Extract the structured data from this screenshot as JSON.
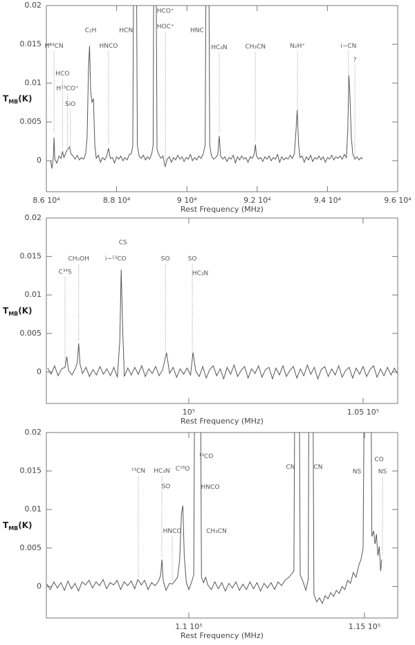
{
  "chart_data": [
    {
      "type": "line",
      "color": "#555555",
      "xlabel": "Rest Frequency (MHz)",
      "ylabel": {
        "main": "T",
        "sub": "MB",
        "unit": "(K)"
      },
      "xlim": [
        86000,
        96000
      ],
      "ylim": [
        -0.004,
        0.02
      ],
      "xticks": [
        {
          "value": 86000,
          "label": "8.6 10⁴"
        },
        {
          "value": 88000,
          "label": "8.8 10⁴"
        },
        {
          "value": 90000,
          "label": "9 10⁴"
        },
        {
          "value": 92000,
          "label": "9.2 10⁴"
        },
        {
          "value": 94000,
          "label": "9.4 10⁴"
        },
        {
          "value": 96000,
          "label": "9.6 10⁴"
        }
      ],
      "yticks": [
        0,
        0.005,
        0.01,
        0.015,
        0.02
      ],
      "x": [
        86120,
        86160,
        86200,
        86220,
        86240,
        86300,
        86360,
        86420,
        86460,
        86500,
        86560,
        86600,
        86660,
        86700,
        86760,
        86820,
        86880,
        86940,
        87000,
        87060,
        87120,
        87160,
        87200,
        87230,
        87260,
        87300,
        87340,
        87380,
        87420,
        87480,
        87540,
        87600,
        87660,
        87720,
        87770,
        87820,
        87880,
        87940,
        88000,
        88060,
        88120,
        88180,
        88240,
        88300,
        88360,
        88420,
        88460,
        88490,
        88560,
        88590,
        88640,
        88700,
        88760,
        88820,
        88880,
        88940,
        89000,
        89040,
        89060,
        89120,
        89150,
        89200,
        89260,
        89320,
        89380,
        89440,
        89500,
        89560,
        89620,
        89680,
        89740,
        89800,
        89860,
        89920,
        89980,
        90040,
        90100,
        90160,
        90220,
        90280,
        90340,
        90400,
        90460,
        90520,
        90550,
        90620,
        90650,
        90700,
        90760,
        90820,
        90880,
        90920,
        90960,
        91020,
        91080,
        91140,
        91200,
        91260,
        91320,
        91380,
        91440,
        91500,
        91560,
        91620,
        91680,
        91740,
        91800,
        91860,
        91920,
        91950,
        91980,
        92040,
        92100,
        92160,
        92220,
        92280,
        92340,
        92400,
        92460,
        92520,
        92580,
        92640,
        92700,
        92760,
        92820,
        92880,
        92940,
        93000,
        93060,
        93100,
        93140,
        93180,
        93220,
        93280,
        93340,
        93400,
        93460,
        93520,
        93580,
        93640,
        93700,
        93760,
        93820,
        93880,
        93940,
        94000,
        94060,
        94120,
        94180,
        94240,
        94300,
        94360,
        94420,
        94480,
        94540,
        94580,
        94610,
        94640,
        94680,
        94720,
        94780,
        94840,
        94900,
        94960,
        95000
      ],
      "values": [
        0,
        -0.001,
        0.0005,
        0.003,
        0.0002,
        -0.0003,
        0.0006,
        0.0003,
        0.0012,
        0.0004,
        0.0011,
        0.0014,
        0.0018,
        0.0009,
        0.0006,
        0.0002,
        0.0007,
        0.0001,
        0.0004,
        0.0002,
        0.0009,
        0.003,
        0.012,
        0.0148,
        0.009,
        0.0075,
        0.008,
        0.002,
        0.0003,
        0.0007,
        -0.0002,
        0.0004,
        0.0001,
        0.0006,
        0.0016,
        0.0003,
        0.0004,
        -0.0003,
        0.0005,
        0.0002,
        0.0006,
        0,
        0.0004,
        0.0001,
        0.0008,
        0.0009,
        0.002,
        0.03,
        0.03,
        0.002,
        0.0006,
        0.0003,
        0.0007,
        0.0001,
        0.0005,
        0.0002,
        0.0009,
        0.002,
        0.03,
        0.03,
        0.0015,
        0.0008,
        0.0003,
        0.0006,
        -0.0008,
        0.0002,
        0.0005,
        -0.0002,
        0.0004,
        0.0001,
        0.0007,
        0.0002,
        0.0005,
        -0.0001,
        0.0004,
        0.0002,
        0.0008,
        0,
        0.0004,
        0.0001,
        0.0006,
        0.0003,
        0.0008,
        0.002,
        0.03,
        0.03,
        0.002,
        0.0006,
        0.0002,
        0.0004,
        0.0008,
        0.0032,
        0.0006,
        0.0002,
        0.0005,
        -0.0001,
        0.0004,
        0.0002,
        0.0007,
        -0.0003,
        0.0005,
        0.0001,
        0.0006,
        0.0002,
        0.0004,
        -0.0002,
        0.0005,
        0.0003,
        0.0009,
        0.0021,
        0.0006,
        0.0002,
        0.0004,
        -0.0001,
        0.0005,
        0.0002,
        0.0006,
        0,
        0.0004,
        0.0002,
        0.0008,
        -0.0002,
        0.0005,
        0.0001,
        0.0004,
        0.0002,
        0.0007,
        0.0003,
        0.0009,
        0.0035,
        0.0065,
        0.002,
        0.0004,
        0.0006,
        -0.0002,
        0.0005,
        0.0001,
        0.0007,
        -0.0001,
        0.0004,
        0.0002,
        0.0006,
        0.0001,
        0.0005,
        -0.0002,
        0.0004,
        0.0002,
        0.0007,
        0.0001,
        0.0005,
        0.0003,
        0.0006,
        0.0002,
        0.0008,
        0.0004,
        0.004,
        0.011,
        0.0085,
        0.003,
        0.0009,
        0.0002,
        0.0005,
        0.0001,
        0.0004,
        0.0002
      ],
      "annotations": [
        {
          "text": "H¹³CN",
          "x": 86220,
          "y": 0.0148,
          "dotted": true
        },
        {
          "text": "HCO",
          "x": 86460,
          "y": 0.0112,
          "dotted": true
        },
        {
          "text": "H¹³CO⁺",
          "x": 86600,
          "y": 0.0093,
          "dotted": true
        },
        {
          "text": "SiO",
          "x": 86680,
          "y": 0.0073,
          "dotted": true
        },
        {
          "text": "C₂H",
          "x": 87260,
          "y": 0.0168,
          "dotted": false
        },
        {
          "text": "HNCO",
          "x": 87770,
          "y": 0.0148,
          "dotted": true
        },
        {
          "text": "HCN",
          "x": 88270,
          "y": 0.0168,
          "dotted": false
        },
        {
          "text": "HCO⁺",
          "x": 89390,
          "y": 0.0193,
          "dotted": false
        },
        {
          "text": "HOC⁺",
          "x": 89390,
          "y": 0.0173,
          "dotted": true
        },
        {
          "text": "HNC",
          "x": 90290,
          "y": 0.0168,
          "dotted": false
        },
        {
          "text": "HC₃N",
          "x": 90920,
          "y": 0.0146,
          "dotted": true
        },
        {
          "text": "CH₃CN",
          "x": 91950,
          "y": 0.0147,
          "dotted": true
        },
        {
          "text": "N₂H⁺",
          "x": 93150,
          "y": 0.0148,
          "dotted": true
        },
        {
          "text": "i−CN",
          "x": 94600,
          "y": 0.0148,
          "dotted": true
        },
        {
          "text": "?",
          "x": 94780,
          "y": 0.013,
          "dotted": true
        }
      ]
    },
    {
      "type": "line",
      "color": "#555555",
      "xlabel": "Rest Frequency (MHz)",
      "ylabel": {
        "main": "T",
        "sub": "MB",
        "unit": "(K)"
      },
      "xlim": [
        95913,
        105993
      ],
      "ylim": [
        -0.0041,
        0.02
      ],
      "xticks": [
        {
          "value": 100000,
          "label": "10⁵"
        },
        {
          "value": 105000,
          "label": "1.05 10⁵"
        }
      ],
      "yticks": [
        0,
        0.005,
        0.01,
        0.015,
        0.02
      ],
      "x": [
        95950,
        96050,
        96150,
        96250,
        96350,
        96450,
        96500,
        96550,
        96650,
        96750,
        96800,
        96840,
        96880,
        96950,
        97050,
        97150,
        97250,
        97350,
        97450,
        97550,
        97650,
        97750,
        97850,
        97950,
        98020,
        98060,
        98100,
        98150,
        98250,
        98350,
        98450,
        98550,
        98650,
        98750,
        98850,
        98950,
        99050,
        99150,
        99250,
        99360,
        99450,
        99550,
        99650,
        99750,
        99850,
        99950,
        100050,
        100120,
        100200,
        100300,
        100400,
        100500,
        100600,
        100700,
        100800,
        100900,
        101000,
        101100,
        101200,
        101300,
        101400,
        101500,
        101600,
        101700,
        101800,
        101900,
        102000,
        102100,
        102200,
        102300,
        102400,
        102500,
        102600,
        102700,
        102800,
        102900,
        103000,
        103100,
        103200,
        103300,
        103400,
        103500,
        103600,
        103700,
        103800,
        103900,
        104000,
        104100,
        104200,
        104300,
        104400,
        104500,
        104600,
        104700,
        104800,
        104900,
        105000,
        105100,
        105200,
        105300,
        105400,
        105500,
        105600,
        105700,
        105800,
        105900,
        105980
      ],
      "values": [
        0.0005,
        -0.0003,
        0.0008,
        -0.0005,
        0.0004,
        0.0006,
        0.002,
        0.0002,
        -0.0004,
        0.0005,
        0.0012,
        0.0037,
        0.001,
        -0.0002,
        0.0006,
        -0.0006,
        0.0003,
        -0.0004,
        0.0007,
        -0.0003,
        0.0004,
        -0.0005,
        0.0006,
        -0.0007,
        0.004,
        0.0133,
        0.006,
        -0.0006,
        0.0005,
        -0.0004,
        0.0006,
        -0.0003,
        0.0008,
        -0.0006,
        0.0004,
        -0.0002,
        0.0007,
        -0.0005,
        0.0003,
        0.0025,
        -0.0002,
        0.0006,
        -0.0007,
        0.0004,
        -0.0003,
        0.0005,
        -0.0004,
        0.0025,
        0.0001,
        -0.0006,
        0.0007,
        -0.0008,
        0.0003,
        0.0008,
        -0.0005,
        0.0004,
        -0.0009,
        0.0006,
        -0.0003,
        0.0009,
        -0.0006,
        0.0002,
        0.0007,
        -0.0008,
        0.0004,
        -0.0002,
        0.0008,
        -0.0007,
        0.0003,
        0.0006,
        -0.0009,
        0.0005,
        -0.0004,
        0.0008,
        -0.0006,
        0.0002,
        0.0007,
        -0.0008,
        0.0004,
        -0.0005,
        0.0009,
        -0.0003,
        0.0006,
        -0.0009,
        0.0003,
        0.0007,
        -0.0006,
        0.0004,
        -0.0004,
        0.0008,
        -0.0007,
        0.0002,
        0.0006,
        -0.0008,
        0.0005,
        -0.0003,
        0.0007,
        -0.0006,
        0.0003,
        0.0008,
        -0.0007,
        0.0004,
        -0.0005,
        0.0006,
        -0.0004,
        0.0005,
        -0.0002
      ],
      "annotations": [
        {
          "text": "C³⁴S",
          "x": 96450,
          "y": 0.013,
          "dotted": true
        },
        {
          "text": "CH₃OH",
          "x": 96840,
          "y": 0.0147,
          "dotted": true
        },
        {
          "text": "i−¹³CO",
          "x": 97900,
          "y": 0.0147,
          "dotted": false
        },
        {
          "text": "CS",
          "x": 98110,
          "y": 0.0168,
          "dotted": false
        },
        {
          "text": "SO",
          "x": 99330,
          "y": 0.0147,
          "dotted": true
        },
        {
          "text": "SO",
          "x": 100100,
          "y": 0.0147,
          "dotted": true
        },
        {
          "text": "HC₃N",
          "x": 100330,
          "y": 0.0128,
          "dotted": false
        }
      ]
    },
    {
      "type": "line",
      "color": "#555555",
      "xlabel": "Rest Frequency (MHz)",
      "ylabel": {
        "main": "T",
        "sub": "MB",
        "unit": "(K)"
      },
      "xlim": [
        105945,
        115945
      ],
      "ylim": [
        -0.0041,
        0.02
      ],
      "xticks": [
        {
          "value": 110000,
          "label": "1.1 10⁵"
        },
        {
          "value": 115000,
          "label": "1.15 10⁵"
        }
      ],
      "yticks": [
        0,
        0.005,
        0.01,
        0.015,
        0.02
      ],
      "x": [
        105960,
        106060,
        106160,
        106260,
        106360,
        106460,
        106560,
        106660,
        106760,
        106860,
        106960,
        107060,
        107160,
        107260,
        107360,
        107460,
        107560,
        107660,
        107760,
        107860,
        107960,
        108060,
        108160,
        108260,
        108360,
        108460,
        108550,
        108650,
        108740,
        108840,
        108940,
        109040,
        109140,
        109200,
        109235,
        109270,
        109350,
        109450,
        109530,
        109600,
        109680,
        109740,
        109790,
        109830,
        109870,
        109930,
        110000,
        110080,
        110140,
        110170,
        110330,
        110360,
        110420,
        110480,
        110540,
        110640,
        110740,
        110840,
        110940,
        111040,
        111140,
        111240,
        111340,
        111440,
        111540,
        111640,
        111740,
        111840,
        111940,
        112040,
        112140,
        112240,
        112340,
        112440,
        112540,
        112640,
        112740,
        112850,
        112990,
        113020,
        113140,
        113170,
        113260,
        113330,
        113400,
        113420,
        113530,
        113560,
        113640,
        113720,
        113800,
        113880,
        113960,
        114040,
        114120,
        114200,
        114280,
        114360,
        114440,
        114520,
        114600,
        114680,
        114760,
        114840,
        114900,
        114960,
        115000,
        115180,
        115210,
        115260,
        115300,
        115340,
        115380,
        115420,
        115460,
        115490
      ],
      "values": [
        0.0003,
        -0.0004,
        0.0006,
        -0.0002,
        0.0005,
        -0.0005,
        0.0007,
        -0.0003,
        0.0004,
        -0.0006,
        0.0006,
        0.0002,
        0.0008,
        -0.0002,
        0.0006,
        0.0001,
        0.0009,
        -0.0003,
        0.0005,
        0.0002,
        0.0008,
        -0.0004,
        0.0006,
        0.0001,
        0.0007,
        -0.0003,
        0.0009,
        0.0002,
        0.0008,
        -0.0004,
        0.0005,
        0.0001,
        0.0007,
        0.0015,
        0.0035,
        0.0008,
        -0.0005,
        0.0004,
        0.0003,
        0.0007,
        0.0012,
        0.0035,
        0.0095,
        0.0105,
        0.004,
        0.0005,
        -0.0004,
        0.0006,
        0.0015,
        0.03,
        0.03,
        0.0012,
        0.0005,
        0.0012,
        0.0002,
        -0.0004,
        0.0006,
        -0.0003,
        0.0005,
        -0.0006,
        0.0004,
        -0.0002,
        0.0006,
        -0.0005,
        0.0003,
        -0.0004,
        0.0006,
        -0.0003,
        0.0005,
        -0.0006,
        0.0004,
        -0.0002,
        0.0005,
        -0.0004,
        0.0006,
        0.0001,
        0.0008,
        0.0012,
        0.002,
        0.03,
        0.03,
        0.0015,
        0.0005,
        -0.0005,
        0.001,
        0.03,
        0.03,
        -0.001,
        -0.002,
        -0.0015,
        -0.0022,
        -0.0012,
        -0.0016,
        -0.0008,
        -0.0013,
        -0.0005,
        -0.0009,
        0,
        -0.0004,
        0.0008,
        0.0004,
        0.0018,
        0.0012,
        0.0028,
        0.0035,
        0.005,
        0.03,
        0.03,
        0.0065,
        0.0072,
        0.0055,
        0.0068,
        0.004,
        0.0052,
        0.002,
        0.0035
      ],
      "annotations": [
        {
          "text": "¹³CN",
          "x": 108563,
          "y": 0.015,
          "dotted": true
        },
        {
          "text": "HC₃N",
          "x": 109232,
          "y": 0.015,
          "dotted": true
        },
        {
          "text": "SO",
          "x": 109350,
          "y": 0.013,
          "dotted": false
        },
        {
          "text": "C¹⁸O",
          "x": 109823,
          "y": 0.0153,
          "dotted": false
        },
        {
          "text": "HNCO",
          "x": 109528,
          "y": 0.0072,
          "dotted": true
        },
        {
          "text": "¹³CO",
          "x": 110492,
          "y": 0.0169,
          "dotted": false
        },
        {
          "text": "HNCO",
          "x": 110610,
          "y": 0.0129,
          "dotted": false
        },
        {
          "text": "CH₃CN",
          "x": 110787,
          "y": 0.0072,
          "dotted": false
        },
        {
          "text": "CN",
          "x": 112894,
          "y": 0.0155,
          "dotted": false
        },
        {
          "text": "CN",
          "x": 113681,
          "y": 0.0155,
          "dotted": false
        },
        {
          "text": "NS",
          "x": 114784,
          "y": 0.0149,
          "dotted": false
        },
        {
          "text": "CO",
          "x": 115414,
          "y": 0.0165,
          "dotted": false
        },
        {
          "text": "NS",
          "x": 115512,
          "y": 0.0149,
          "dotted": true
        }
      ]
    }
  ]
}
